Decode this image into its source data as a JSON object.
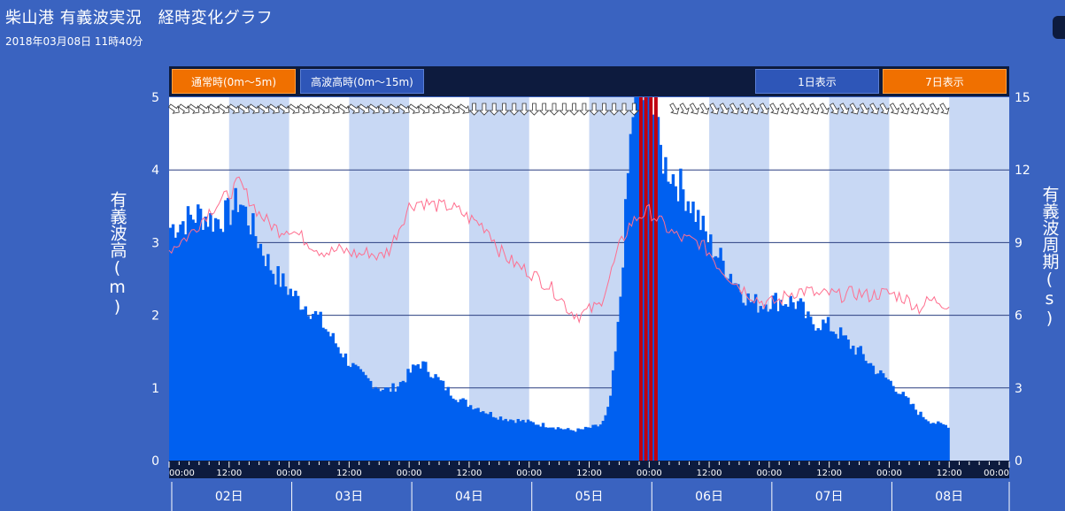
{
  "page": {
    "title": "柴山港 有義波実況　経時変化グラフ",
    "timestamp": "2018年03月08日 11時40分"
  },
  "toolbar": {
    "normal_label": "通常時(0m〜5m)",
    "high_label": "高波高時(0m〜15m)",
    "day1_label": "1日表示",
    "day7_label": "7日表示"
  },
  "axes": {
    "left_label": "有義波高(m)",
    "right_label": "有義波周期(s)"
  },
  "colors": {
    "background": "#3a63c0",
    "plot_bg": "#ffffff",
    "band": "#c8d8f4",
    "wave_bar": "#0060f0",
    "storm_bar": "#c00010",
    "period_line": "#ff6f8f",
    "toolbar_bg": "#0d1b3e",
    "button_orange": "#f07000",
    "button_blue": "#2e56b8"
  },
  "chart_data": {
    "type": "bar",
    "x_unit": "hours since 02日 00:00",
    "xlim": [
      0,
      168
    ],
    "ylim_left": [
      0,
      5
    ],
    "ylim_right": [
      0,
      15
    ],
    "yticks_left": [
      0,
      1,
      2,
      3,
      4,
      5
    ],
    "yticks_right": [
      0,
      3,
      6,
      9,
      12,
      15
    ],
    "xtick_labels": [
      "00:00",
      "12:00",
      "00:00",
      "12:00",
      "00:00",
      "12:00",
      "00:00",
      "12:00",
      "00:00",
      "12:00",
      "00:00",
      "12:00",
      "00:00",
      "12:00",
      "00:00"
    ],
    "day_labels": [
      "02日",
      "03日",
      "04日",
      "05日",
      "06日",
      "07日",
      "08日"
    ],
    "grid": true,
    "series": [
      {
        "name": "有義波高",
        "axis": "left",
        "points": [
          [
            0,
            3.2
          ],
          [
            3,
            3.3
          ],
          [
            6,
            3.4
          ],
          [
            9,
            3.3
          ],
          [
            12,
            3.4
          ],
          [
            14,
            3.6
          ],
          [
            16,
            3.3
          ],
          [
            18,
            3.0
          ],
          [
            20,
            2.7
          ],
          [
            22,
            2.5
          ],
          [
            24,
            2.35
          ],
          [
            26,
            2.2
          ],
          [
            28,
            2.1
          ],
          [
            30,
            1.95
          ],
          [
            32,
            1.75
          ],
          [
            34,
            1.55
          ],
          [
            36,
            1.35
          ],
          [
            38,
            1.2
          ],
          [
            40,
            1.1
          ],
          [
            42,
            1.0
          ],
          [
            44,
            0.97
          ],
          [
            46,
            1.05
          ],
          [
            48,
            1.2
          ],
          [
            50,
            1.35
          ],
          [
            52,
            1.25
          ],
          [
            54,
            1.1
          ],
          [
            56,
            0.95
          ],
          [
            58,
            0.85
          ],
          [
            60,
            0.77
          ],
          [
            62,
            0.72
          ],
          [
            64,
            0.65
          ],
          [
            66,
            0.6
          ],
          [
            68,
            0.57
          ],
          [
            70,
            0.55
          ],
          [
            72,
            0.53
          ],
          [
            74,
            0.5
          ],
          [
            76,
            0.48
          ],
          [
            78,
            0.45
          ],
          [
            80,
            0.42
          ],
          [
            82,
            0.42
          ],
          [
            84,
            0.45
          ],
          [
            86,
            0.48
          ],
          [
            87,
            0.55
          ],
          [
            88,
            0.75
          ],
          [
            89,
            1.3
          ],
          [
            90,
            2.0
          ],
          [
            91,
            3.1
          ],
          [
            92,
            4.2
          ],
          [
            93,
            5.0
          ],
          [
            94,
            5.0
          ],
          [
            95,
            5.0
          ],
          [
            96,
            5.0
          ],
          [
            97,
            4.8
          ],
          [
            98,
            4.3
          ],
          [
            99,
            4.1
          ],
          [
            100,
            4.0
          ],
          [
            102,
            3.8
          ],
          [
            104,
            3.6
          ],
          [
            106,
            3.3
          ],
          [
            108,
            3.0
          ],
          [
            110,
            2.8
          ],
          [
            112,
            2.6
          ],
          [
            114,
            2.4
          ],
          [
            116,
            2.2
          ],
          [
            118,
            2.15
          ],
          [
            120,
            2.2
          ],
          [
            122,
            2.2
          ],
          [
            124,
            2.2
          ],
          [
            126,
            2.15
          ],
          [
            128,
            1.9
          ],
          [
            130,
            1.9
          ],
          [
            132,
            1.85
          ],
          [
            134,
            1.75
          ],
          [
            136,
            1.6
          ],
          [
            138,
            1.5
          ],
          [
            140,
            1.35
          ],
          [
            142,
            1.2
          ],
          [
            144,
            1.1
          ],
          [
            146,
            0.95
          ],
          [
            148,
            0.8
          ],
          [
            150,
            0.65
          ],
          [
            152,
            0.55
          ],
          [
            154,
            0.5
          ],
          [
            156,
            0.48
          ]
        ]
      },
      {
        "name": "有義波周期",
        "axis": "right",
        "points": [
          [
            0,
            8.7
          ],
          [
            4,
            9.3
          ],
          [
            8,
            10.3
          ],
          [
            12,
            11.0
          ],
          [
            14,
            11.5
          ],
          [
            16,
            10.8
          ],
          [
            18,
            10.2
          ],
          [
            20,
            9.8
          ],
          [
            22,
            9.5
          ],
          [
            24,
            9.6
          ],
          [
            26,
            9.3
          ],
          [
            28,
            9.0
          ],
          [
            30,
            8.7
          ],
          [
            32,
            8.6
          ],
          [
            34,
            8.7
          ],
          [
            36,
            8.6
          ],
          [
            38,
            8.5
          ],
          [
            40,
            8.6
          ],
          [
            42,
            8.4
          ],
          [
            44,
            8.7
          ],
          [
            46,
            9.6
          ],
          [
            48,
            10.5
          ],
          [
            50,
            10.7
          ],
          [
            52,
            10.6
          ],
          [
            54,
            10.5
          ],
          [
            56,
            10.5
          ],
          [
            58,
            10.3
          ],
          [
            60,
            10.0
          ],
          [
            62,
            9.8
          ],
          [
            64,
            9.5
          ],
          [
            66,
            8.7
          ],
          [
            68,
            8.3
          ],
          [
            70,
            8.0
          ],
          [
            72,
            7.8
          ],
          [
            74,
            7.5
          ],
          [
            76,
            7.2
          ],
          [
            78,
            6.8
          ],
          [
            80,
            6.2
          ],
          [
            82,
            6.0
          ],
          [
            84,
            6.2
          ],
          [
            86,
            6.4
          ],
          [
            88,
            7.5
          ],
          [
            90,
            8.8
          ],
          [
            92,
            9.7
          ],
          [
            94,
            10.1
          ],
          [
            96,
            10.3
          ],
          [
            98,
            9.9
          ],
          [
            100,
            9.5
          ],
          [
            102,
            9.2
          ],
          [
            104,
            9.1
          ],
          [
            106,
            9.0
          ],
          [
            108,
            8.6
          ],
          [
            110,
            8.0
          ],
          [
            112,
            7.6
          ],
          [
            114,
            7.2
          ],
          [
            116,
            6.9
          ],
          [
            118,
            6.6
          ],
          [
            120,
            6.5
          ],
          [
            122,
            6.6
          ],
          [
            124,
            6.9
          ],
          [
            126,
            7.0
          ],
          [
            128,
            7.0
          ],
          [
            130,
            6.8
          ],
          [
            132,
            6.9
          ],
          [
            134,
            6.8
          ],
          [
            136,
            6.9
          ],
          [
            138,
            6.9
          ],
          [
            140,
            6.8
          ],
          [
            142,
            6.9
          ],
          [
            144,
            6.9
          ],
          [
            146,
            6.8
          ],
          [
            148,
            6.6
          ],
          [
            150,
            6.3
          ],
          [
            152,
            6.6
          ],
          [
            154,
            6.6
          ],
          [
            156,
            6.4
          ]
        ]
      }
    ],
    "storm_interval": [
      94,
      98
    ]
  }
}
